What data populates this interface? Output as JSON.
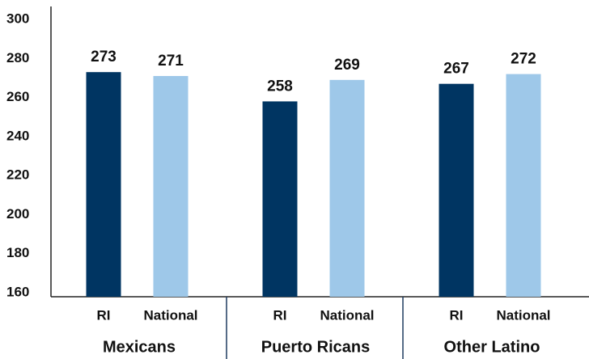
{
  "chart_data": {
    "type": "bar",
    "categories": [
      "Mexicans",
      "Puerto Ricans",
      "Other Latino"
    ],
    "series": [
      {
        "name": "RI",
        "color": "#003562",
        "values": [
          273,
          258,
          267
        ]
      },
      {
        "name": "National",
        "color": "#9ec8e9",
        "values": [
          271,
          269,
          272
        ]
      }
    ],
    "ylim": [
      160,
      300
    ],
    "yticks": [
      160,
      180,
      200,
      220,
      240,
      260,
      280,
      300
    ],
    "grid": false
  }
}
